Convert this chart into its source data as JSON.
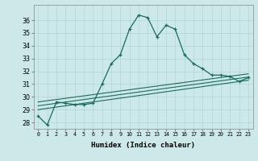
{
  "xlabel": "Humidex (Indice chaleur)",
  "ylabel": "",
  "background_color": "#cce8e8",
  "line_color": "#1a6b5a",
  "xlim": [
    -0.5,
    23.5
  ],
  "ylim": [
    27.5,
    37.2
  ],
  "xtick_labels": [
    "0",
    "1",
    "2",
    "3",
    "4",
    "5",
    "6",
    "7",
    "8",
    "9",
    "10",
    "11",
    "12",
    "13",
    "14",
    "15",
    "16",
    "17",
    "18",
    "19",
    "20",
    "21",
    "22",
    "23"
  ],
  "ytick_values": [
    28,
    29,
    30,
    31,
    32,
    33,
    34,
    35,
    36
  ],
  "series": [
    {
      "x": [
        0,
        1,
        2,
        3,
        4,
        5,
        6,
        7,
        8,
        9,
        10,
        11,
        12,
        13,
        14,
        15,
        16,
        17,
        18,
        19,
        20,
        21,
        22,
        23
      ],
      "y": [
        28.5,
        27.8,
        29.6,
        29.5,
        29.4,
        29.4,
        29.5,
        31.0,
        32.6,
        33.3,
        35.3,
        36.4,
        36.2,
        34.7,
        35.6,
        35.3,
        33.3,
        32.6,
        32.2,
        31.7,
        31.7,
        31.6,
        31.2,
        31.5
      ],
      "color": "#1a6b5a",
      "linewidth": 0.9,
      "marker": "+"
    },
    {
      "x": [
        0,
        23
      ],
      "y": [
        29.0,
        31.3
      ],
      "color": "#1a6b5a",
      "linewidth": 0.8,
      "marker": null
    },
    {
      "x": [
        0,
        23
      ],
      "y": [
        29.3,
        31.55
      ],
      "color": "#1a6b5a",
      "linewidth": 0.8,
      "marker": null
    },
    {
      "x": [
        0,
        23
      ],
      "y": [
        29.6,
        31.8
      ],
      "color": "#1a6b5a",
      "linewidth": 0.8,
      "marker": null
    }
  ],
  "grid_color": "#b0d8d8",
  "grid_linewidth": 0.5,
  "xlabel_fontsize": 6.5,
  "xlabel_fontweight": "bold",
  "xtick_fontsize": 4.8,
  "ytick_fontsize": 5.8,
  "marker_size": 3.5,
  "marker_edge_width": 0.9
}
